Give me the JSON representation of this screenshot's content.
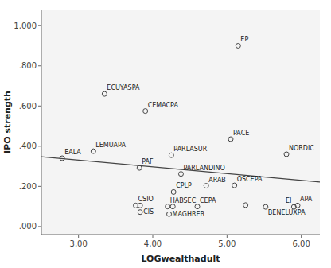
{
  "chart_data": {
    "type": "scatter",
    "x_label": "LOGwealthadult",
    "y_label": "IPO strength",
    "xlim": [
      2.5,
      6.25
    ],
    "ylim": [
      -0.04,
      1.08
    ],
    "xticks": [
      {
        "value": 3.0,
        "label": "3,00"
      },
      {
        "value": 4.0,
        "label": "4,00"
      },
      {
        "value": 5.0,
        "label": "5,00"
      },
      {
        "value": 6.0,
        "label": "6,00"
      }
    ],
    "yticks": [
      {
        "value": 0.0,
        "label": ".000"
      },
      {
        "value": 0.2,
        "label": ".200"
      },
      {
        "value": 0.4,
        "label": ".400"
      },
      {
        "value": 0.6,
        "label": ".600"
      },
      {
        "value": 0.8,
        "label": ".800"
      },
      {
        "value": 1.0,
        "label": "1,000"
      }
    ],
    "series": [
      {
        "type": "scatter",
        "marker": "circle",
        "color": "#444444",
        "x": [
          5.15,
          3.35,
          3.9,
          5.05,
          3.2,
          4.25,
          5.8,
          2.78,
          3.82,
          4.38,
          4.72,
          5.1,
          4.28,
          3.77,
          3.83,
          3.83,
          4.2,
          4.27,
          4.22,
          4.6,
          5.25,
          5.52,
          5.95,
          5.9
        ],
        "values": [
          0.9,
          0.66,
          0.575,
          0.435,
          0.375,
          0.355,
          0.36,
          0.34,
          0.292,
          0.262,
          0.203,
          0.205,
          0.172,
          0.105,
          0.105,
          0.072,
          0.1,
          0.1,
          0.062,
          0.1,
          0.107,
          0.098,
          0.105,
          0.098
        ],
        "labels": [
          "EP",
          "ECUYASPA",
          "CEMACPA",
          "PACE",
          "LEMUAPA",
          "PARLASUR",
          "NORDIC",
          "EALA",
          "PAF",
          "PARLANDINO",
          "ARAB",
          "OSCEPA",
          "CPLP",
          "CSIO",
          null,
          "CIS",
          "HABSEC",
          null,
          "MAGHREB",
          "CEPA",
          null,
          "BENELUXPA",
          "APA",
          "EI"
        ]
      },
      {
        "type": "line",
        "line_style": "solid",
        "color": "#444444",
        "x": [
          2.5,
          6.25
        ],
        "values": [
          0.347,
          0.222
        ]
      }
    ]
  }
}
